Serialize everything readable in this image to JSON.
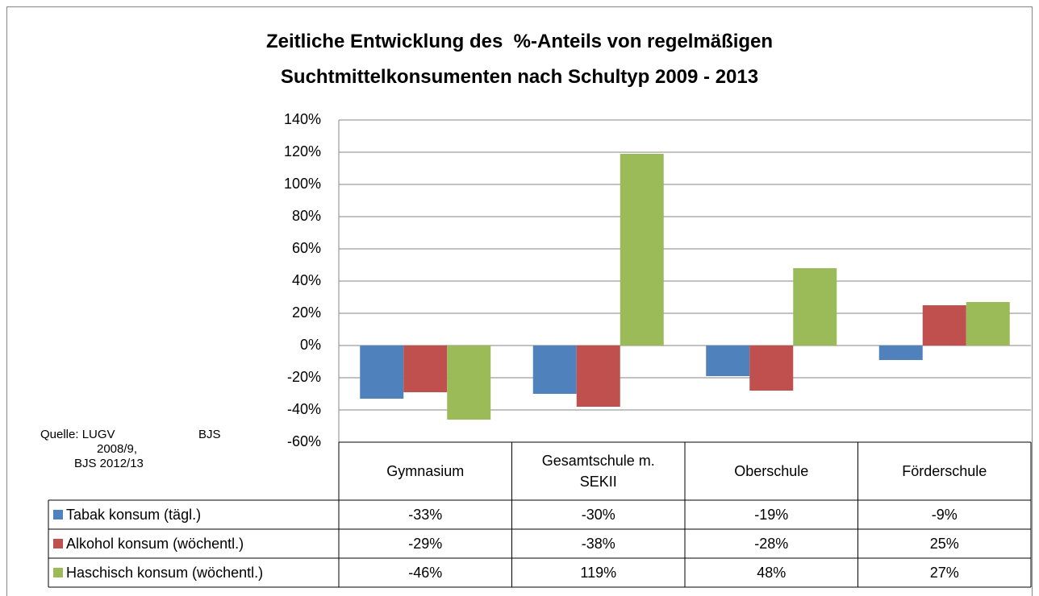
{
  "chart_data": {
    "type": "bar",
    "title": "Zeitliche Entwicklung des  %-Anteils von regelmäßigen Suchtmittelkonsumenten nach Schultyp 2009 - 2013",
    "categories": [
      "Gymnasium",
      "Gesamtschule m. SEKII",
      "Oberschule",
      "Förderschule"
    ],
    "series": [
      {
        "name": "Tabak konsum (tägl.)",
        "color": "#4f81bd",
        "values": [
          -33,
          -30,
          -19,
          -9
        ],
        "value_labels": [
          "-33%",
          "-30%",
          "-19%",
          "-9%"
        ]
      },
      {
        "name": "Alkohol konsum (wöchentl.)",
        "color": "#c0504d",
        "values": [
          -29,
          -38,
          -28,
          25
        ],
        "value_labels": [
          "-29%",
          "-38%",
          "-28%",
          "25%"
        ]
      },
      {
        "name": "Haschisch konsum (wöchentl.)",
        "color": "#9bbb59",
        "values": [
          -46,
          119,
          48,
          27
        ],
        "value_labels": [
          "-46%",
          "119%",
          "48%",
          "27%"
        ]
      }
    ],
    "ylim": [
      -60,
      140
    ],
    "yticks": [
      {
        "value": -60,
        "label": "-60%"
      },
      {
        "value": -40,
        "label": "-40%"
      },
      {
        "value": -20,
        "label": "-20%"
      },
      {
        "value": 0,
        "label": "0%"
      },
      {
        "value": 20,
        "label": "20%"
      },
      {
        "value": 40,
        "label": "40%"
      },
      {
        "value": 60,
        "label": "60%"
      },
      {
        "value": 80,
        "label": "80%"
      },
      {
        "value": 100,
        "label": "100%"
      },
      {
        "value": 120,
        "label": "120%"
      },
      {
        "value": 140,
        "label": "140%"
      }
    ],
    "grid": true,
    "source": [
      "Quelle: LUGV",
      "BJS",
      "2008/9,",
      "BJS 2012/13"
    ]
  }
}
